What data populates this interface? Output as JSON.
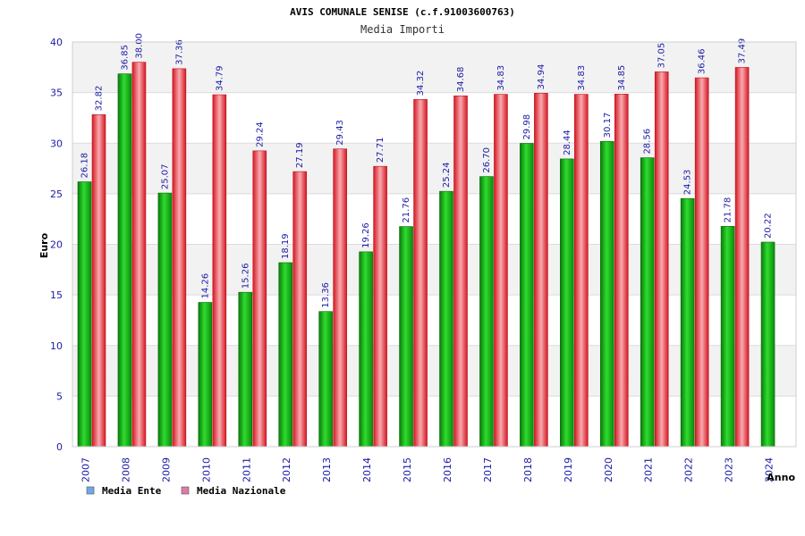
{
  "chart_data": {
    "type": "bar",
    "title": "AVIS COMUNALE SENISE (c.f.91003600763)",
    "subtitle": "Media Importi",
    "xlabel": "Anno",
    "ylabel": "Euro",
    "ylim": [
      0,
      40
    ],
    "yticks": [
      0,
      5,
      10,
      15,
      20,
      25,
      30,
      35,
      40
    ],
    "grid": true,
    "legend_position": "bottom-left",
    "categories": [
      "2007",
      "2008",
      "2009",
      "2010",
      "2011",
      "2012",
      "2013",
      "2014",
      "2015",
      "2016",
      "2017",
      "2018",
      "2019",
      "2020",
      "2021",
      "2022",
      "2023",
      "2024"
    ],
    "series": [
      {
        "name": "Media Ente",
        "color": "#1fbf1f",
        "legend_color": "#6fa8e8",
        "values": [
          26.18,
          36.85,
          25.07,
          14.26,
          15.26,
          18.19,
          13.36,
          19.26,
          21.76,
          25.24,
          26.7,
          29.98,
          28.44,
          30.17,
          28.56,
          24.53,
          21.78,
          20.22
        ]
      },
      {
        "name": "Media Nazionale",
        "color": "#e8202a",
        "legend_color": "#e07aa8",
        "values": [
          32.82,
          38.0,
          37.36,
          34.79,
          29.24,
          27.19,
          29.43,
          27.71,
          34.32,
          34.68,
          34.83,
          34.94,
          34.83,
          34.85,
          37.05,
          36.46,
          37.49,
          null
        ]
      }
    ]
  }
}
